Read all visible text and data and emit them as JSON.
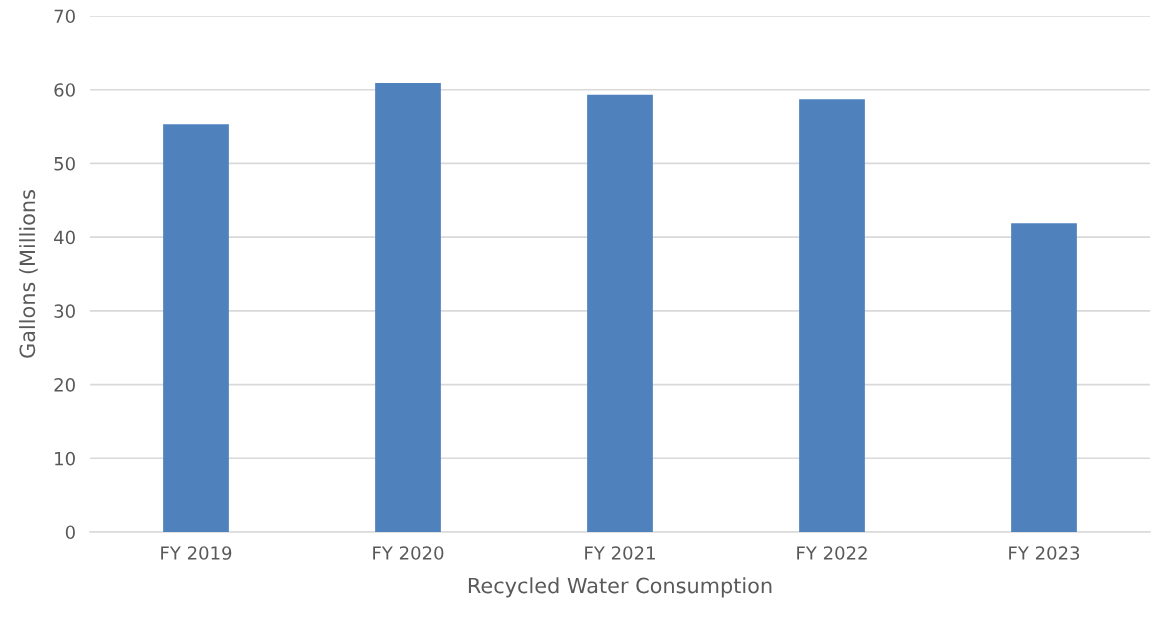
{
  "chart_data": {
    "type": "bar",
    "xlabel": "Recycled Water Consumption",
    "ylabel": "Gallons (Millions",
    "categories": [
      "FY 2019",
      "FY 2020",
      "FY 2021",
      "FY 2022",
      "FY 2023"
    ],
    "values": [
      55.3,
      60.9,
      59.3,
      58.7,
      41.9
    ],
    "color": "#4f81bd",
    "ylim": [
      0,
      70
    ],
    "yticks": [
      0,
      10,
      20,
      30,
      40,
      50,
      60,
      70
    ],
    "grid": "y"
  }
}
